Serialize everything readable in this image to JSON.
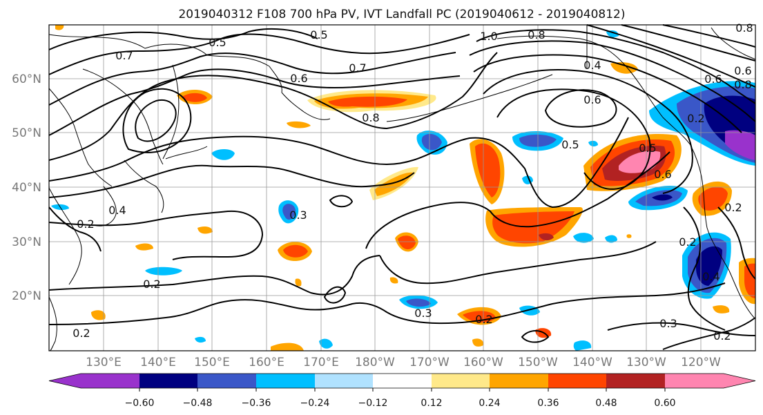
{
  "title": "2019040312 F108 700 hPa PV, IVT Landfall PC (2019040612 - 2019040812)",
  "lat_labels": [
    "60°N",
    "50°N",
    "40°N",
    "30°N",
    "20°N"
  ],
  "lon_labels": [
    "130°E",
    "140°E",
    "150°E",
    "160°E",
    "170°E",
    "180°W",
    "170°W",
    "160°W",
    "150°W",
    "140°W",
    "130°W",
    "120°W"
  ],
  "colorbar": {
    "ticks": [
      "−0.60",
      "−0.48",
      "−0.36",
      "−0.24",
      "−0.12",
      "0.12",
      "0.24",
      "0.36",
      "0.48",
      "0.60"
    ],
    "colors": [
      "#9932cc",
      "#000080",
      "#3a57c8",
      "#00bfff",
      "#b0e2ff",
      "#ffffff",
      "#ffe98a",
      "#ffa500",
      "#ff4500",
      "#b22222",
      "#ff85b0"
    ]
  },
  "contour_labels": [
    "0.5",
    "0.7",
    "0.5",
    "0.6",
    "0.7",
    "1.0",
    "0.8",
    "0.8",
    "0.4",
    "0.6",
    "0.6",
    "0.2",
    "0.8",
    "0.5",
    "0.5",
    "0.6",
    "0.4",
    "0.2",
    "0.2",
    "0.3",
    "0.3",
    "0.2",
    "0.3",
    "0.2",
    "0.2",
    "0.2",
    "0.4",
    "0.2",
    "0.8",
    "0.6"
  ]
}
